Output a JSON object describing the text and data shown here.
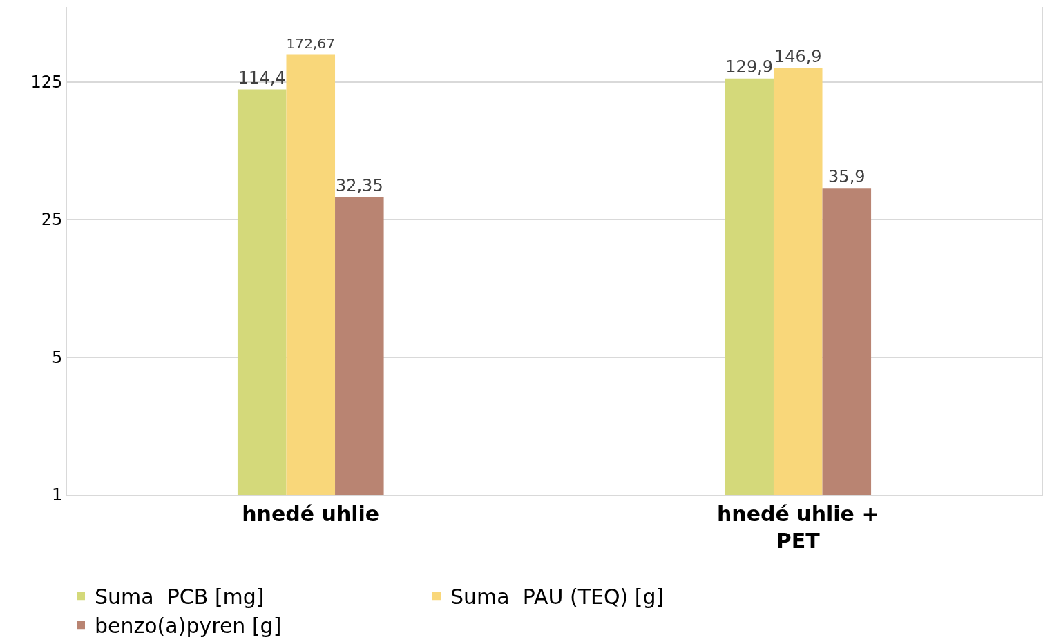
{
  "chart_data": {
    "type": "bar",
    "categories": [
      "hnedé uhlie",
      "hnedé uhlie + PET"
    ],
    "series": [
      {
        "name": "Suma  PCB [mg]",
        "color": "#d4d97a",
        "values": [
          114.4,
          129.9
        ],
        "value_labels": [
          "114,4",
          "129,9"
        ]
      },
      {
        "name": "Suma  PAU (TEQ) [g]",
        "color": "#f9d77a",
        "values": [
          172.67,
          146.9
        ],
        "value_labels": [
          "172,67",
          "146,9"
        ]
      },
      {
        "name": "benzo(a)pyren [g]",
        "color": "#b98472",
        "values": [
          32.35,
          35.9
        ],
        "value_labels": [
          "32,35",
          "35,9"
        ]
      }
    ],
    "log": true,
    "ylim": [
      1,
      300
    ],
    "yticks": [
      1,
      5,
      25,
      125
    ],
    "grid": "y",
    "legend": "bottom"
  }
}
